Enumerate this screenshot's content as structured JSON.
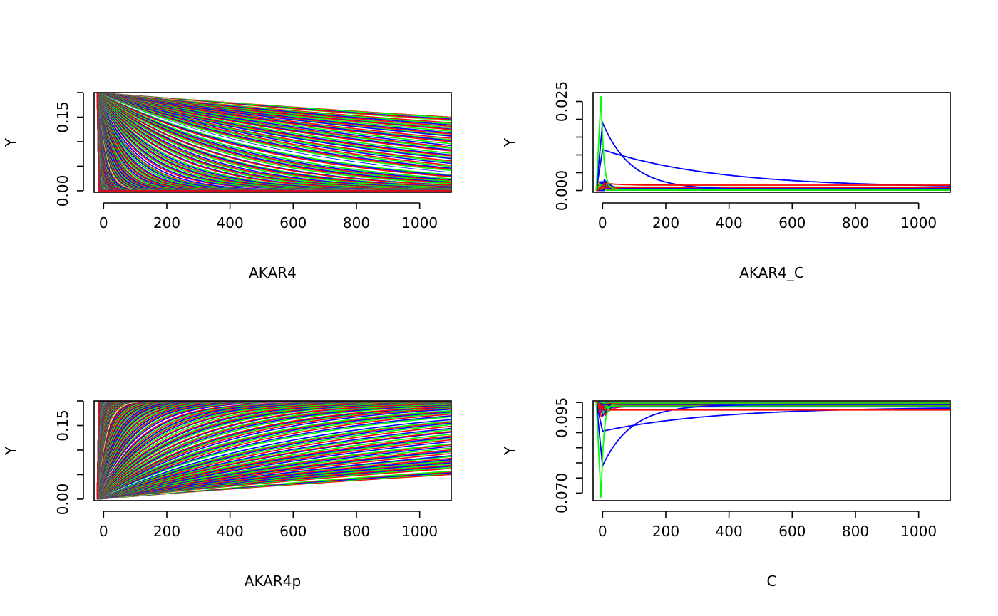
{
  "chart_data": [
    {
      "type": "line",
      "panel": "top-left",
      "xlabel": "AKAR4",
      "ylabel": "Y",
      "xlim": [
        -30,
        1100
      ],
      "ylim": [
        -0.003,
        0.2
      ],
      "x_ticks": [
        0,
        200,
        400,
        600,
        800,
        1000
      ],
      "y_ticks": [
        0.0,
        0.05,
        0.1,
        0.15,
        0.2
      ],
      "y_tick_labels": [
        "0.00",
        "",
        "",
        "0.15",
        ""
      ],
      "x_range": [
        -20,
        1100
      ],
      "shape": "decay",
      "curve_count": 220,
      "series_colors": [
        "#ff0000",
        "#00ff00",
        "#0000ff",
        "#ffffff"
      ]
    },
    {
      "type": "line",
      "panel": "top-right",
      "xlabel": "AKAR4_C",
      "ylabel": "Y",
      "xlim": [
        -30,
        1100
      ],
      "ylim": [
        -0.0005,
        0.0275
      ],
      "x_ticks": [
        0,
        200,
        400,
        600,
        800,
        1000
      ],
      "y_ticks": [
        0.0,
        0.005,
        0.01,
        0.015,
        0.02,
        0.025
      ],
      "y_tick_labels": [
        "0.000",
        "",
        "",
        "",
        "",
        "0.025"
      ],
      "x_range": [
        -20,
        1100
      ],
      "shape": "spike",
      "highlighted_series": [
        {
          "color": "#0000ff",
          "start": 0.0,
          "peak": 0.019,
          "peak_x": 0,
          "end": 0.0003
        },
        {
          "color": "#0000ff",
          "start": 0.0,
          "peak": 0.0115,
          "peak_x": 0,
          "end": 0.0008
        },
        {
          "color": "#ff0000",
          "start": 0.0,
          "peak": 0.002,
          "peak_x": 10,
          "end": 0.0015
        },
        {
          "color": "#00ff00",
          "start": 0.0,
          "peak": 0.0265,
          "peak_x": -5,
          "end": 0.0003
        }
      ],
      "series_colors": [
        "#ff0000",
        "#00ff00",
        "#0000ff"
      ]
    },
    {
      "type": "line",
      "panel": "bottom-left",
      "xlabel": "AKAR4p",
      "ylabel": "Y",
      "xlim": [
        -30,
        1100
      ],
      "ylim": [
        -0.003,
        0.2
      ],
      "x_ticks": [
        0,
        200,
        400,
        600,
        800,
        1000
      ],
      "y_ticks": [
        0.0,
        0.05,
        0.1,
        0.15,
        0.2
      ],
      "y_tick_labels": [
        "0.00",
        "",
        "",
        "0.15",
        ""
      ],
      "x_range": [
        -20,
        1100
      ],
      "shape": "growth",
      "curve_count": 220,
      "series_colors": [
        "#ff0000",
        "#00ff00",
        "#0000ff",
        "#ffffff"
      ]
    },
    {
      "type": "line",
      "panel": "bottom-right",
      "xlabel": "C",
      "ylabel": "Y",
      "xlim": [
        -30,
        1100
      ],
      "ylim": [
        0.0675,
        0.1005
      ],
      "x_ticks": [
        0,
        200,
        400,
        600,
        800,
        1000
      ],
      "y_ticks": [
        0.07,
        0.075,
        0.08,
        0.085,
        0.09,
        0.095,
        0.1
      ],
      "y_tick_labels": [
        "0.070",
        "",
        "",
        "",
        "",
        "0.095",
        ""
      ],
      "x_range": [
        -20,
        1100
      ],
      "shape": "dip",
      "highlighted_series": [
        {
          "color": "#0000ff",
          "start": 0.1,
          "min": 0.079,
          "min_x": 0,
          "end": 0.0993
        },
        {
          "color": "#0000ff",
          "start": 0.1,
          "min": 0.0905,
          "min_x": 0,
          "end": 0.0985
        },
        {
          "color": "#ff0000",
          "start": 0.1,
          "min": 0.0975,
          "min_x": 10,
          "end": 0.0975
        },
        {
          "color": "#00ff00",
          "start": 0.1,
          "min": 0.0685,
          "min_x": -5,
          "end": 0.0995
        }
      ],
      "series_colors": [
        "#ff0000",
        "#00ff00",
        "#0000ff"
      ]
    }
  ]
}
